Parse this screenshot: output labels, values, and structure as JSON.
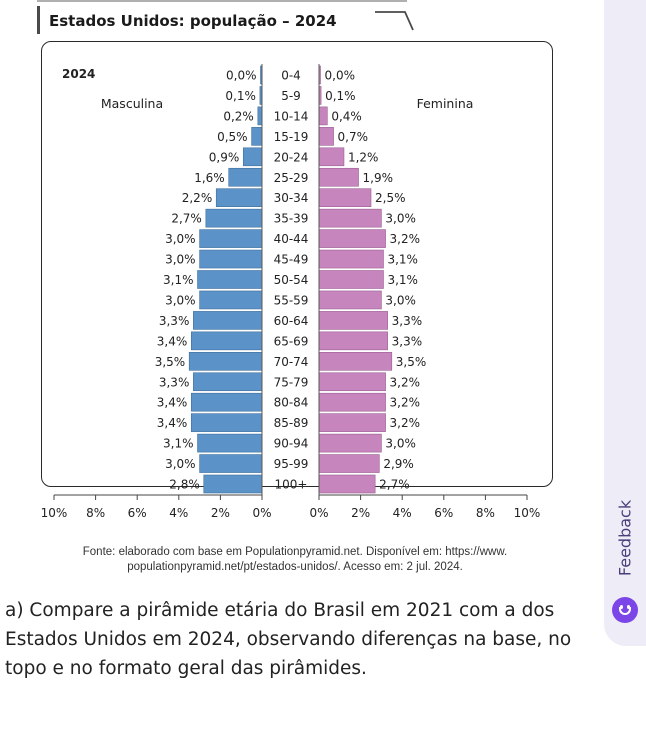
{
  "title": "Estados Unidos: população – 2024",
  "chart_data": {
    "type": "bar",
    "subtype": "population-pyramid",
    "year_label": "2024",
    "male_label": "Masculina",
    "female_label": "Feminina",
    "categories": [
      "0-4",
      "5-9",
      "10-14",
      "15-19",
      "20-24",
      "25-29",
      "30-34",
      "35-39",
      "40-44",
      "45-49",
      "50-54",
      "55-59",
      "60-64",
      "65-69",
      "70-74",
      "75-79",
      "80-84",
      "85-89",
      "90-94",
      "95-99",
      "100+"
    ],
    "series": [
      {
        "name": "Masculina",
        "color": "#5b93c9",
        "values": [
          0.0,
          0.1,
          0.2,
          0.5,
          0.9,
          1.6,
          2.2,
          2.7,
          3.0,
          3.0,
          3.1,
          3.0,
          3.3,
          3.4,
          3.5,
          3.3,
          3.4,
          3.4,
          3.1,
          3.0,
          2.8
        ],
        "labels": [
          "0,0%",
          "0,1%",
          "0,2%",
          "0,5%",
          "0,9%",
          "1,6%",
          "2,2%",
          "2,7%",
          "3,0%",
          "3,0%",
          "3,1%",
          "3,0%",
          "3,3%",
          "3,4%",
          "3,5%",
          "3,3%",
          "3,4%",
          "3,4%",
          "3,1%",
          "3,0%",
          "2,8%"
        ]
      },
      {
        "name": "Feminina",
        "color": "#c685bc",
        "values": [
          0.0,
          0.1,
          0.4,
          0.7,
          1.2,
          1.9,
          2.5,
          3.0,
          3.2,
          3.1,
          3.1,
          3.0,
          3.3,
          3.3,
          3.5,
          3.2,
          3.2,
          3.2,
          3.0,
          2.9,
          2.7
        ],
        "labels": [
          "0,0%",
          "0,1%",
          "0,4%",
          "0,7%",
          "1,2%",
          "1,9%",
          "2,5%",
          "3,0%",
          "3,2%",
          "3,1%",
          "3,1%",
          "3,0%",
          "3,3%",
          "3,3%",
          "3,5%",
          "3,2%",
          "3,2%",
          "3,2%",
          "3,0%",
          "2,9%",
          "2,7%"
        ]
      }
    ],
    "x_range": [
      0,
      10
    ],
    "x_ticks_left": [
      "10%",
      "8%",
      "6%",
      "4%",
      "2%",
      "0%"
    ],
    "x_ticks_right": [
      "0%",
      "2%",
      "4%",
      "6%",
      "8%",
      "10%"
    ]
  },
  "source_note": {
    "line1": "Fonte: elaborado com base em Populationpyramid.net. Disponível em: https://www.",
    "line2": "populationpyramid.net/pt/estados-unidos/. Acesso em: 2 jul. 2024."
  },
  "question": "a) Compare a pirâmide etária do Brasil em 2021 com a dos Estados Unidos em 2024, observando diferenças na base, no topo e no formato geral das pirâmides.",
  "feedback": {
    "label": "Feedback",
    "color": "#7b45e8"
  }
}
